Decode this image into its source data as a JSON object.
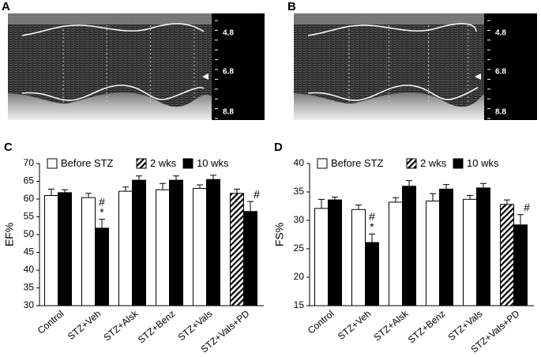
{
  "echo_images": [
    {
      "panel": "A",
      "scale_labels": [
        "4.8",
        "6.8",
        "8.8"
      ]
    },
    {
      "panel": "B",
      "scale_labels": [
        "4.8",
        "6.8",
        "8.8"
      ]
    }
  ],
  "chart_data": [
    {
      "type": "bar",
      "panel": "C",
      "y_label": "EF%",
      "categories": [
        "Control",
        "STZ+Veh",
        "STZ+Alsk",
        "STZ+Benz",
        "STZ+Vals",
        "STZ+Vals+PD"
      ],
      "series": [
        {
          "name": "Before STZ",
          "color": "#ffffff",
          "hatch": false,
          "values": [
            61,
            60.4,
            62.2,
            62.6,
            63.0,
            null
          ],
          "errors": [
            1.8,
            1.2,
            1.2,
            1.8,
            1.0,
            null
          ]
        },
        {
          "name": "2 wks",
          "color": "#ffffff",
          "hatch": true,
          "values": [
            null,
            null,
            null,
            null,
            null,
            61.6
          ],
          "errors": [
            null,
            null,
            null,
            null,
            null,
            1.2
          ]
        },
        {
          "name": "10 wks",
          "color": "#000000",
          "hatch": false,
          "values": [
            61.8,
            51.8,
            65.3,
            65.3,
            65.5,
            56.5
          ],
          "errors": [
            0.8,
            2.5,
            1.2,
            1.2,
            1.2,
            2.8
          ]
        }
      ],
      "annotations": [
        {
          "text": "#",
          "category": 1,
          "series": 2
        },
        {
          "text": "*",
          "category": 1,
          "series": 2
        },
        {
          "text": "#",
          "category": 5,
          "series": 2
        }
      ],
      "ylim": [
        30,
        70
      ],
      "yticks": [
        30,
        35,
        40,
        45,
        50,
        55,
        60,
        65,
        70
      ]
    },
    {
      "type": "bar",
      "panel": "D",
      "y_label": "FS%",
      "categories": [
        "Control",
        "STZ+Veh",
        "STZ+Alsk",
        "STZ+Benz",
        "STZ+Vals",
        "STZ+Vals+PD"
      ],
      "series": [
        {
          "name": "Before STZ",
          "color": "#ffffff",
          "hatch": false,
          "values": [
            32.1,
            31.9,
            33.2,
            33.4,
            33.7,
            null
          ],
          "errors": [
            1.6,
            0.8,
            0.8,
            1.3,
            0.7,
            null
          ]
        },
        {
          "name": "2 wks",
          "color": "#ffffff",
          "hatch": true,
          "values": [
            null,
            null,
            null,
            null,
            null,
            32.8
          ],
          "errors": [
            null,
            null,
            null,
            null,
            null,
            0.8
          ]
        },
        {
          "name": "10 wks",
          "color": "#000000",
          "hatch": false,
          "values": [
            33.6,
            26.1,
            36.0,
            35.5,
            35.7,
            29.2
          ],
          "errors": [
            0.5,
            1.5,
            1.0,
            0.8,
            0.8,
            1.8
          ]
        }
      ],
      "annotations": [
        {
          "text": "#",
          "category": 1,
          "series": 2
        },
        {
          "text": "*",
          "category": 1,
          "series": 2
        },
        {
          "text": "#",
          "category": 5,
          "series": 2
        }
      ],
      "ylim": [
        15,
        40
      ],
      "yticks": [
        15,
        20,
        25,
        30,
        35,
        40
      ]
    }
  ]
}
